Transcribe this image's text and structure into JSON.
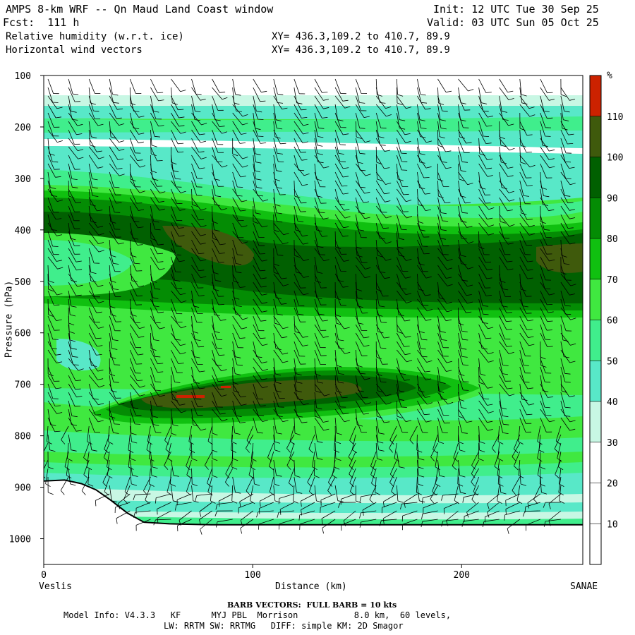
{
  "header": {
    "title": "AMPS 8-km WRF -- Qn Maud Land Coast window",
    "fcst": "Fcst:  111 h",
    "field1": "Relative humidity (w.r.t. ice)",
    "field2": "Horizontal wind vectors",
    "xy1": "XY= 436.3,109.2 to 410.7, 89.9",
    "xy2": "XY= 436.3,109.2 to 410.7, 89.9",
    "init": "Init: 12 UTC Tue 30 Sep 25",
    "valid": "Valid: 03 UTC Sun 05 Oct 25"
  },
  "footer": {
    "barb_note": "BARB VECTORS:  FULL BARB = 10 kts",
    "model_info_1": "Model Info: V4.3.3   KF      MYJ PBL  Morrison           8.0 km,  60 levels,",
    "model_info_2": "LW: RRTM SW: RRTMG   DIFF: simple KM: 2D Smagor"
  },
  "chart_data": {
    "type": "heatmap",
    "title": "Relative humidity (w.r.t. ice)",
    "xlabel": "Distance (km)",
    "ylabel": "Pressure (hPa)",
    "x_start_label": "Veslis",
    "x_end_label": "SANAE",
    "xlim": [
      0,
      258
    ],
    "ylim": [
      100,
      1050
    ],
    "y_scale": "linear, inverted (pressure increases downward)",
    "x_ticks": [
      0,
      100,
      200
    ],
    "y_ticks": [
      100,
      200,
      300,
      400,
      500,
      600,
      700,
      800,
      900,
      1000
    ],
    "colorbar": {
      "unit": "%",
      "levels": [
        10,
        20,
        30,
        40,
        50,
        60,
        70,
        80,
        90,
        100,
        110
      ],
      "colors": [
        "#ffffff",
        "#ffffff",
        "#ffffff",
        "#c8f7e4",
        "#58e8c8",
        "#40ee8c",
        "#40e840",
        "#10c010",
        "#048c04",
        "#016001",
        "#3f5a0c",
        "#cc2200"
      ]
    },
    "terrain_surface": {
      "x_km": [
        0,
        10,
        18,
        25,
        32,
        40,
        48,
        60,
        80,
        120,
        200,
        258
      ],
      "pressure_hPa": [
        888,
        886,
        893,
        905,
        925,
        950,
        968,
        971,
        973,
        973,
        973,
        973
      ]
    },
    "rh_bands": [
      {
        "range": "100-110",
        "location": "upper layer about 300-470 hPa between 60-110 km; 440-500 hPa near 235-258 km; 700-760 hPa between 40-160 km"
      },
      {
        "range": "90-100",
        "location": "band 280-560 hPa across the section; band 680-760 hPa from 35-190 km"
      },
      {
        "range": "110+",
        "location": "small patches near 720 hPa at about 65 km and 85 km"
      },
      {
        "range": "<30",
        "location": "above about 150 hPa and a thin layer near 220 hPa"
      }
    ],
    "wind_barbs_note": "Horizontal wind barbs plotted on the section; full barb = 10 kts"
  }
}
